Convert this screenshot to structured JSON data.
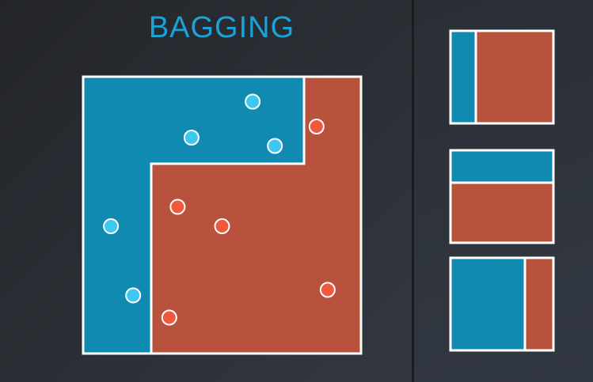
{
  "title": "BAGGING",
  "colors": {
    "blue_region": "#118ab2",
    "red_region": "#b8523c",
    "blue_point": "#3cc8f0",
    "red_point": "#f05a3c",
    "border": "#ffffff",
    "title": "#1aa3d6"
  },
  "main_diagram": {
    "points": [
      {
        "cls": "blue",
        "x": 0.61,
        "y": 0.09
      },
      {
        "cls": "blue",
        "x": 0.39,
        "y": 0.22
      },
      {
        "cls": "blue",
        "x": 0.69,
        "y": 0.25
      },
      {
        "cls": "blue",
        "x": 0.1,
        "y": 0.54
      },
      {
        "cls": "blue",
        "x": 0.18,
        "y": 0.79
      },
      {
        "cls": "red",
        "x": 0.84,
        "y": 0.18
      },
      {
        "cls": "red",
        "x": 0.34,
        "y": 0.47
      },
      {
        "cls": "red",
        "x": 0.5,
        "y": 0.54
      },
      {
        "cls": "red",
        "x": 0.88,
        "y": 0.77
      },
      {
        "cls": "red",
        "x": 0.31,
        "y": 0.87
      }
    ]
  },
  "weak_learners": [
    {
      "split": "vertical",
      "left": "blue",
      "right": "red",
      "at": 0.25
    },
    {
      "split": "horizontal",
      "top": "blue",
      "bottom": "red",
      "at": 0.35
    },
    {
      "split": "vertical",
      "left": "blue",
      "right": "red",
      "at": 0.72
    }
  ]
}
